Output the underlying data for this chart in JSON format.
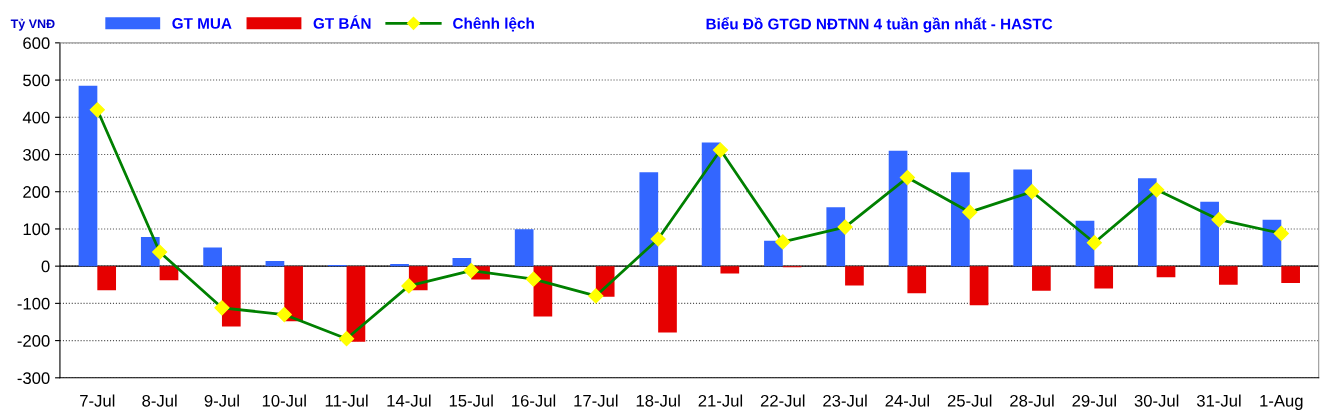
{
  "chart_data": {
    "type": "bar",
    "title": "Biểu Đồ GTGD NĐTNN 4 tuần gần nhất - HASTC",
    "ylabel": "Tỷ VNĐ",
    "categories": [
      "7-Jul",
      "8-Jul",
      "9-Jul",
      "10-Jul",
      "11-Jul",
      "14-Jul",
      "15-Jul",
      "16-Jul",
      "17-Jul",
      "18-Jul",
      "21-Jul",
      "22-Jul",
      "23-Jul",
      "24-Jul",
      "25-Jul",
      "28-Jul",
      "29-Jul",
      "30-Jul",
      "31-Jul",
      "1-Aug"
    ],
    "series": [
      {
        "name": "GT MUA",
        "color": "#3366ff",
        "values": [
          485,
          78,
          50,
          14,
          3,
          6,
          22,
          99,
          0,
          252,
          332,
          68,
          158,
          310,
          252,
          260,
          122,
          236,
          173,
          125
        ]
      },
      {
        "name": "GT BÁN",
        "color": "#e60000",
        "values": [
          -65,
          -38,
          -162,
          -148,
          -203,
          -65,
          -36,
          -135,
          -82,
          -178,
          -20,
          -3,
          -52,
          -73,
          -105,
          -66,
          -60,
          -30,
          -50,
          -45
        ]
      },
      {
        "name": "Chênh lệch",
        "type": "line",
        "color": "#008000",
        "values": [
          420,
          38,
          -112,
          -130,
          -195,
          -53,
          -12,
          -35,
          -80,
          73,
          312,
          65,
          105,
          238,
          145,
          200,
          63,
          205,
          125,
          88
        ]
      }
    ],
    "ylim": [
      -300,
      600
    ],
    "yticks": [
      -300,
      -200,
      -100,
      0,
      100,
      200,
      300,
      400,
      500,
      600
    ],
    "grid": "y",
    "legend": "top left",
    "marker": "diamond",
    "line_style": "solid"
  }
}
